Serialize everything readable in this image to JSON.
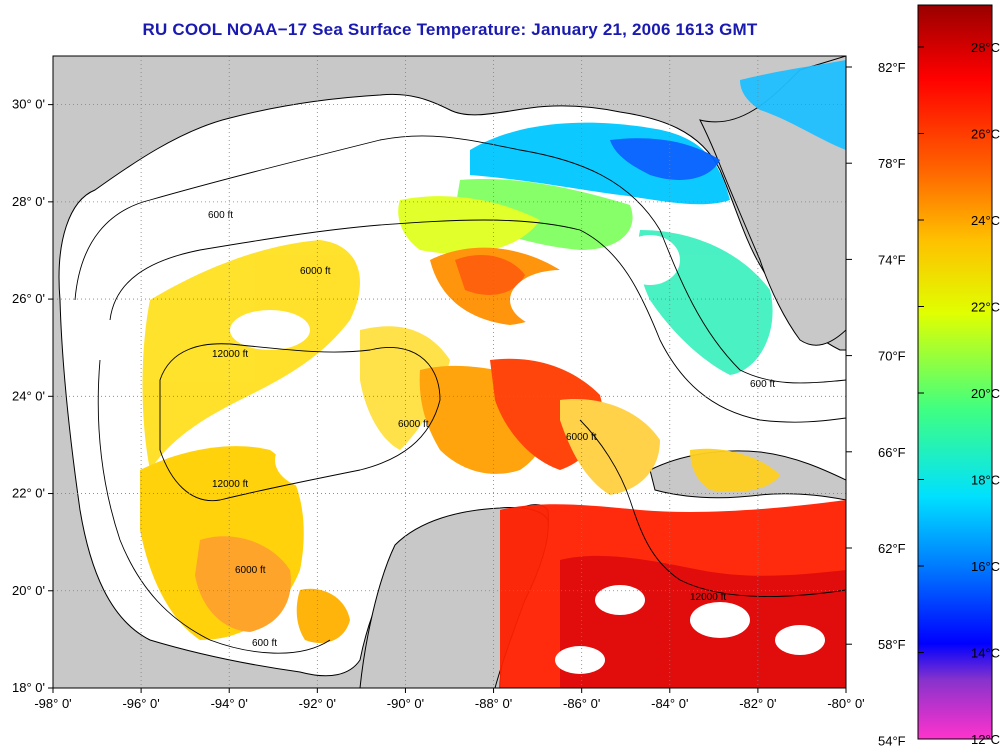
{
  "title": "RU COOL  NOAA−17  Sea Surface Temperature:  January 21, 2006 1613 GMT",
  "map": {
    "lon_range": [
      -98,
      -80
    ],
    "lat_range": [
      18,
      31
    ],
    "lon_ticks": [
      "-98° 0'",
      "-96° 0'",
      "-94° 0'",
      "-92° 0'",
      "-90° 0'",
      "-88° 0'",
      "-86° 0'",
      "-84° 0'",
      "-82° 0'",
      "-80° 0'"
    ],
    "lat_ticks": [
      "18° 0'",
      "20° 0'",
      "22° 0'",
      "24° 0'",
      "26° 0'",
      "28° 0'",
      "30° 0'"
    ],
    "fahrenheit_ticks": [
      "82°F",
      "78°F",
      "74°F",
      "70°F",
      "66°F",
      "62°F",
      "58°F",
      "54°F"
    ],
    "contours": [
      "600 ft",
      "6000 ft",
      "12000 ft"
    ],
    "colors": {
      "land": "#c8c8c8",
      "cloud": "#ffffff",
      "grid": "#808080"
    }
  },
  "colorbar": {
    "celsius_ticks": [
      "28°C",
      "26°C",
      "24°C",
      "22°C",
      "20°C",
      "18°C",
      "16°C",
      "14°C",
      "12°C"
    ],
    "stops": [
      "#ff33cc",
      "#8833cc",
      "#0000ff",
      "#0080ff",
      "#00e0ff",
      "#40ff80",
      "#e0ff00",
      "#ffc000",
      "#ff6000",
      "#ff0000",
      "#990000"
    ]
  }
}
